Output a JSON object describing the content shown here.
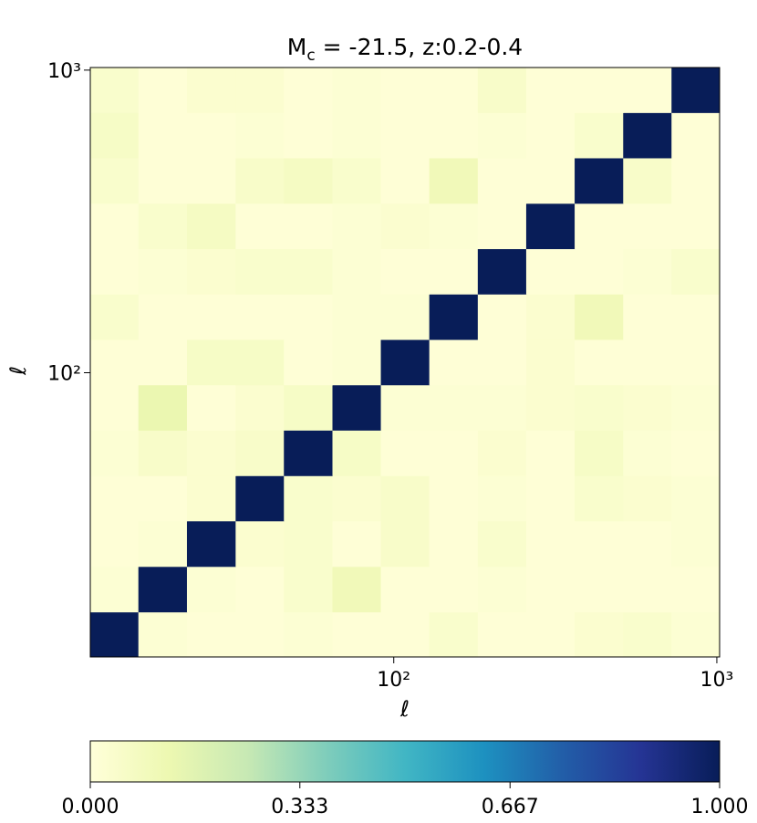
{
  "chart_data": {
    "type": "heatmap",
    "title": {
      "main": "M",
      "sub": "c",
      "rest": " = -21.5, z:0.2-0.4"
    },
    "xlabel": "ℓ",
    "ylabel": "ℓ",
    "xscale": "log",
    "yscale": "log",
    "xlim": [
      11.5,
      1020
    ],
    "ylim": [
      11.5,
      1020
    ],
    "xticks": [
      {
        "value": 100,
        "label": "10²"
      },
      {
        "value": 1000,
        "label": "10³"
      }
    ],
    "yticks": [
      {
        "value": 100,
        "label": "10²"
      },
      {
        "value": 1000,
        "label": "10³"
      }
    ],
    "bins": [
      11.5,
      16.2,
      22.9,
      32.4,
      45.7,
      64.6,
      91.2,
      128.8,
      182,
      257,
      363,
      513,
      724,
      1020
    ],
    "colormap": "YlGnBu",
    "clim": [
      0,
      1
    ],
    "cticks": [
      {
        "value": 0,
        "label": "0.000"
      },
      {
        "value": 0.333,
        "label": "0.333"
      },
      {
        "value": 0.667,
        "label": "0.667"
      },
      {
        "value": 1,
        "label": "1.000"
      }
    ],
    "z": [
      [
        1,
        0.02,
        0.01,
        0.01,
        0.02,
        0.01,
        0.01,
        0.04,
        0.01,
        0.01,
        0.03,
        0.04,
        0.02
      ],
      [
        0.02,
        1,
        0.02,
        0.01,
        0.04,
        0.1,
        0.01,
        0.01,
        0.02,
        0.01,
        0.01,
        0.01,
        0.01
      ],
      [
        0.01,
        0.02,
        1,
        0.03,
        0.04,
        0.01,
        0.05,
        0.01,
        0.04,
        0.01,
        0.01,
        0.01,
        0.02
      ],
      [
        0.01,
        0.01,
        0.03,
        1,
        0.04,
        0.03,
        0.05,
        0.01,
        0.02,
        0.01,
        0.04,
        0.03,
        0.02
      ],
      [
        0.02,
        0.05,
        0.03,
        0.05,
        1,
        0.06,
        0.01,
        0.01,
        0.03,
        0.01,
        0.06,
        0.02,
        0.01
      ],
      [
        0.01,
        0.13,
        0.01,
        0.03,
        0.06,
        1,
        0.02,
        0.02,
        0.02,
        0.03,
        0.04,
        0.03,
        0.02
      ],
      [
        0.01,
        0.01,
        0.06,
        0.06,
        0.01,
        0.02,
        1,
        0.01,
        0.01,
        0.03,
        0.01,
        0.01,
        0.01
      ],
      [
        0.04,
        0.01,
        0.01,
        0.01,
        0.01,
        0.02,
        0.02,
        1,
        0.01,
        0.03,
        0.1,
        0.01,
        0.01
      ],
      [
        0.01,
        0.02,
        0.03,
        0.04,
        0.04,
        0.02,
        0.01,
        0.01,
        1,
        0.01,
        0.01,
        0.02,
        0.04
      ],
      [
        0.01,
        0.04,
        0.07,
        0.01,
        0.01,
        0.02,
        0.03,
        0.02,
        0.01,
        1,
        0.01,
        0.01,
        0.01
      ],
      [
        0.04,
        0.01,
        0.01,
        0.05,
        0.07,
        0.04,
        0.01,
        0.1,
        0.01,
        0.01,
        1,
        0.05,
        0.01
      ],
      [
        0.06,
        0.01,
        0.01,
        0.02,
        0.01,
        0.02,
        0.01,
        0.01,
        0.02,
        0.01,
        0.04,
        1,
        0.01
      ],
      [
        0.04,
        0.01,
        0.03,
        0.03,
        0.01,
        0.02,
        0.01,
        0.01,
        0.05,
        0.01,
        0.01,
        0.01,
        1
      ]
    ]
  }
}
